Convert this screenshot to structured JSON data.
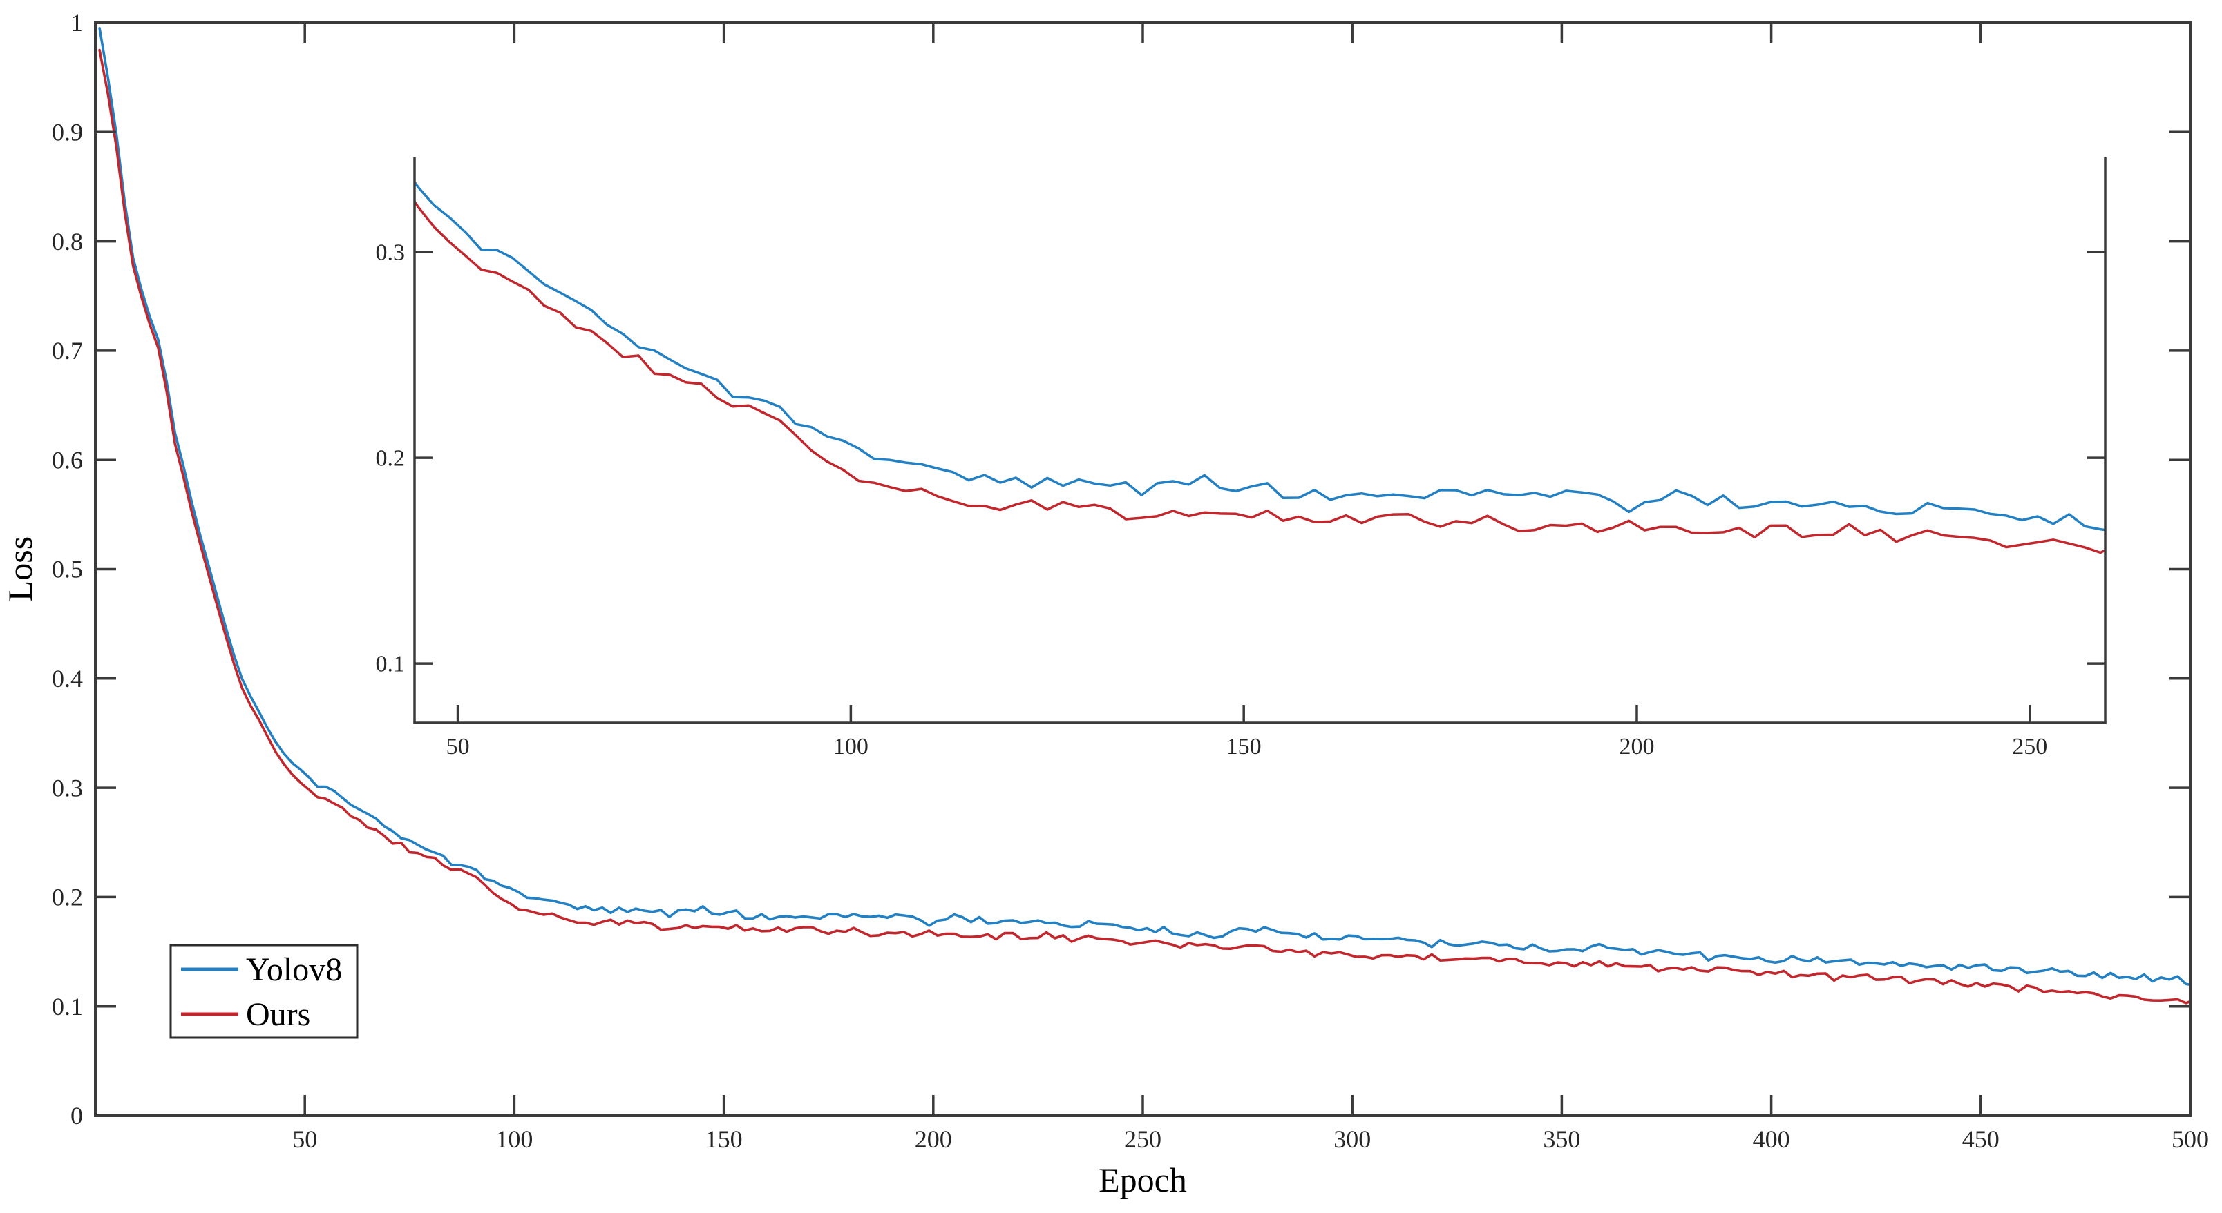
{
  "colors": {
    "background": "#ffffff",
    "axis": "#3a3a3a",
    "tick_text": "#262626",
    "yolov8": "#2380c3",
    "ours": "#c1272d"
  },
  "legend": {
    "items": [
      {
        "label": "Yolov8",
        "series": "yolov8"
      },
      {
        "label": "Ours",
        "series": "ours"
      }
    ],
    "position": "lower-left"
  },
  "style": {
    "jitter": {
      "yolov8": 0.0046,
      "ours": 0.004,
      "start_epoch": 46,
      "ramp": 18
    }
  },
  "chart_data": [
    {
      "id": "main",
      "type": "line",
      "title": "",
      "xlabel": "Epoch",
      "ylabel": "Loss",
      "xlim": [
        0,
        500
      ],
      "ylim": [
        0,
        1
      ],
      "grid": false,
      "box": "full",
      "legend_position": "lower-left",
      "xticks": {
        "values": [
          50,
          100,
          150,
          200,
          250,
          300,
          350,
          400,
          450,
          500
        ],
        "labels": [
          "50",
          "100",
          "150",
          "200",
          "250",
          "300",
          "350",
          "400",
          "450",
          "500"
        ]
      },
      "yticks": {
        "values": [
          0,
          0.1,
          0.2,
          0.3,
          0.4,
          0.5,
          0.6,
          0.7,
          0.8,
          0.9,
          1
        ],
        "labels": [
          "0",
          "0.1",
          "0.2",
          "0.3",
          "0.4",
          "0.5",
          "0.6",
          "0.7",
          "0.8",
          "0.9",
          "1"
        ]
      },
      "series": [
        {
          "name": "Yolov8",
          "color_key": "yolov8",
          "points": [
            [
              1,
              0.995
            ],
            [
              2,
              0.975
            ],
            [
              4,
              0.925
            ],
            [
              6,
              0.873
            ],
            [
              8,
              0.8
            ],
            [
              10,
              0.77
            ],
            [
              12,
              0.742
            ],
            [
              14,
              0.72
            ],
            [
              16,
              0.7
            ],
            [
              17,
              0.672
            ],
            [
              19,
              0.625
            ],
            [
              21,
              0.595
            ],
            [
              22,
              0.578
            ],
            [
              24,
              0.545
            ],
            [
              26,
              0.518
            ],
            [
              28,
              0.49
            ],
            [
              30,
              0.462
            ],
            [
              32,
              0.435
            ],
            [
              34,
              0.41
            ],
            [
              36,
              0.39
            ],
            [
              38,
              0.378
            ],
            [
              40,
              0.362
            ],
            [
              43,
              0.342
            ],
            [
              46,
              0.326
            ],
            [
              50,
              0.313
            ],
            [
              53,
              0.302
            ],
            [
              56,
              0.3
            ],
            [
              58,
              0.294
            ],
            [
              60,
              0.289
            ],
            [
              63,
              0.281
            ],
            [
              66,
              0.273
            ],
            [
              70,
              0.263
            ],
            [
              74,
              0.253
            ],
            [
              78,
              0.246
            ],
            [
              82,
              0.239
            ],
            [
              86,
              0.231
            ],
            [
              89,
              0.228
            ],
            [
              92,
              0.219
            ],
            [
              96,
              0.209
            ],
            [
              100,
              0.205
            ],
            [
              104,
              0.2
            ],
            [
              108,
              0.196
            ],
            [
              112,
              0.193
            ],
            [
              116,
              0.19
            ],
            [
              120,
              0.191
            ],
            [
              124,
              0.188
            ],
            [
              128,
              0.189
            ],
            [
              132,
              0.187
            ],
            [
              136,
              0.185
            ],
            [
              140,
              0.187
            ],
            [
              144,
              0.189
            ],
            [
              148,
              0.188
            ],
            [
              152,
              0.186
            ],
            [
              156,
              0.184
            ],
            [
              160,
              0.183
            ],
            [
              164,
              0.182
            ],
            [
              168,
              0.185
            ],
            [
              172,
              0.182
            ],
            [
              176,
              0.181
            ],
            [
              180,
              0.184
            ],
            [
              184,
              0.18
            ],
            [
              188,
              0.179
            ],
            [
              192,
              0.183
            ],
            [
              196,
              0.179
            ],
            [
              200,
              0.174
            ],
            [
              204,
              0.184
            ],
            [
              208,
              0.181
            ],
            [
              212,
              0.178
            ],
            [
              216,
              0.177
            ],
            [
              220,
              0.179
            ],
            [
              224,
              0.176
            ],
            [
              228,
              0.177
            ],
            [
              232,
              0.175
            ],
            [
              236,
              0.176
            ],
            [
              240,
              0.177
            ],
            [
              244,
              0.174
            ],
            [
              248,
              0.171
            ],
            [
              252,
              0.172
            ],
            [
              256,
              0.17
            ],
            [
              260,
              0.168
            ],
            [
              265,
              0.167
            ],
            [
              270,
              0.166
            ],
            [
              275,
              0.17
            ],
            [
              280,
              0.171
            ],
            [
              285,
              0.166
            ],
            [
              290,
              0.164
            ],
            [
              295,
              0.163
            ],
            [
              300,
              0.162
            ],
            [
              310,
              0.161
            ],
            [
              320,
              0.158
            ],
            [
              330,
              0.156
            ],
            [
              340,
              0.154
            ],
            [
              350,
              0.152
            ],
            [
              360,
              0.156
            ],
            [
              370,
              0.15
            ],
            [
              380,
              0.147
            ],
            [
              390,
              0.145
            ],
            [
              400,
              0.144
            ],
            [
              410,
              0.142
            ],
            [
              420,
              0.14
            ],
            [
              430,
              0.139
            ],
            [
              440,
              0.137
            ],
            [
              450,
              0.135
            ],
            [
              460,
              0.133
            ],
            [
              470,
              0.131
            ],
            [
              480,
              0.129
            ],
            [
              490,
              0.127
            ],
            [
              500,
              0.123
            ]
          ]
        },
        {
          "name": "Ours",
          "color_key": "ours",
          "points": [
            [
              1,
              0.975
            ],
            [
              2,
              0.958
            ],
            [
              4,
              0.912
            ],
            [
              6,
              0.862
            ],
            [
              8,
              0.792
            ],
            [
              10,
              0.763
            ],
            [
              12,
              0.735
            ],
            [
              14,
              0.713
            ],
            [
              16,
              0.692
            ],
            [
              17,
              0.663
            ],
            [
              19,
              0.615
            ],
            [
              21,
              0.585
            ],
            [
              22,
              0.568
            ],
            [
              24,
              0.537
            ],
            [
              26,
              0.51
            ],
            [
              28,
              0.481
            ],
            [
              30,
              0.454
            ],
            [
              32,
              0.427
            ],
            [
              34,
              0.402
            ],
            [
              36,
              0.381
            ],
            [
              38,
              0.37
            ],
            [
              40,
              0.355
            ],
            [
              43,
              0.333
            ],
            [
              46,
              0.316
            ],
            [
              50,
              0.301
            ],
            [
              53,
              0.291
            ],
            [
              56,
              0.289
            ],
            [
              58,
              0.283
            ],
            [
              60,
              0.278
            ],
            [
              63,
              0.27
            ],
            [
              66,
              0.263
            ],
            [
              70,
              0.254
            ],
            [
              74,
              0.245
            ],
            [
              78,
              0.239
            ],
            [
              82,
              0.232
            ],
            [
              86,
              0.225
            ],
            [
              89,
              0.222
            ],
            [
              92,
              0.212
            ],
            [
              96,
              0.199
            ],
            [
              100,
              0.192
            ],
            [
              104,
              0.188
            ],
            [
              108,
              0.184
            ],
            [
              112,
              0.181
            ],
            [
              116,
              0.177
            ],
            [
              120,
              0.178
            ],
            [
              124,
              0.176
            ],
            [
              128,
              0.177
            ],
            [
              132,
              0.175
            ],
            [
              136,
              0.173
            ],
            [
              140,
              0.174
            ],
            [
              144,
              0.175
            ],
            [
              148,
              0.174
            ],
            [
              152,
              0.173
            ],
            [
              156,
              0.171
            ],
            [
              160,
              0.17
            ],
            [
              164,
              0.169
            ],
            [
              168,
              0.171
            ],
            [
              172,
              0.169
            ],
            [
              176,
              0.168
            ],
            [
              180,
              0.17
            ],
            [
              184,
              0.167
            ],
            [
              188,
              0.166
            ],
            [
              192,
              0.168
            ],
            [
              196,
              0.166
            ],
            [
              200,
              0.167
            ],
            [
              204,
              0.166
            ],
            [
              208,
              0.165
            ],
            [
              212,
              0.165
            ],
            [
              216,
              0.164
            ],
            [
              220,
              0.165
            ],
            [
              224,
              0.163
            ],
            [
              228,
              0.164
            ],
            [
              232,
              0.162
            ],
            [
              236,
              0.163
            ],
            [
              240,
              0.162
            ],
            [
              244,
              0.16
            ],
            [
              248,
              0.158
            ],
            [
              252,
              0.159
            ],
            [
              256,
              0.157
            ],
            [
              260,
              0.155
            ],
            [
              265,
              0.154
            ],
            [
              270,
              0.153
            ],
            [
              275,
              0.155
            ],
            [
              280,
              0.154
            ],
            [
              285,
              0.151
            ],
            [
              290,
              0.149
            ],
            [
              295,
              0.148
            ],
            [
              300,
              0.147
            ],
            [
              310,
              0.146
            ],
            [
              320,
              0.144
            ],
            [
              330,
              0.142
            ],
            [
              340,
              0.14
            ],
            [
              350,
              0.139
            ],
            [
              360,
              0.14
            ],
            [
              370,
              0.136
            ],
            [
              380,
              0.134
            ],
            [
              390,
              0.132
            ],
            [
              400,
              0.13
            ],
            [
              410,
              0.128
            ],
            [
              420,
              0.126
            ],
            [
              430,
              0.124
            ],
            [
              440,
              0.122
            ],
            [
              450,
              0.119
            ],
            [
              460,
              0.116
            ],
            [
              470,
              0.113
            ],
            [
              480,
              0.11
            ],
            [
              490,
              0.108
            ],
            [
              500,
              0.104
            ]
          ]
        }
      ]
    },
    {
      "id": "inset",
      "type": "line",
      "role": "zoom-inset",
      "note": "magnified view of the same two series over epochs ~45-260",
      "xlabel": "",
      "ylabel": "",
      "xlim": [
        44.5,
        259.6
      ],
      "ylim": [
        0.0712,
        0.346
      ],
      "grid": false,
      "box": "open-top",
      "series_ref": "main",
      "xticks": {
        "values": [
          50,
          100,
          150,
          200,
          250
        ],
        "labels": [
          "50",
          "100",
          "150",
          "200",
          "250"
        ]
      },
      "yticks": {
        "values": [
          0.1,
          0.2,
          0.3
        ],
        "labels": [
          "0.1",
          "0.2",
          "0.3"
        ]
      }
    }
  ]
}
